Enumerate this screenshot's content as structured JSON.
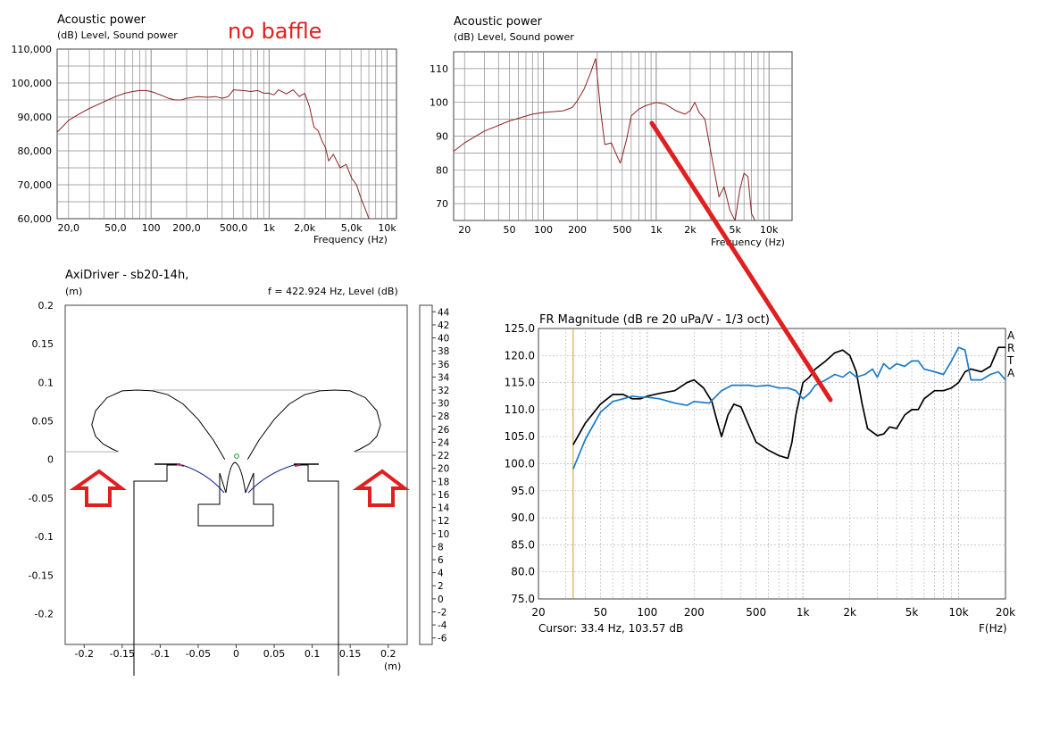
{
  "note": "no baffle",
  "colors": {
    "background": "#ffffff",
    "gridline": "#8a8a8a",
    "power_curve": "#8b2222",
    "annotation_red": "#e02020",
    "arta_black": "#000000",
    "arta_blue": "#1a7ac8",
    "cursor_line": "#c8a020"
  },
  "chart_data": [
    {
      "id": "power1",
      "type": "line",
      "title": "Acoustic power",
      "subtitle": "(dB)  Level, Sound power",
      "xlabel": "Frequency  (Hz)",
      "ylabel": "",
      "xscale": "log",
      "xlim": [
        16,
        12000
      ],
      "ylim": [
        60,
        110
      ],
      "grid": true,
      "x_ticks": [
        20,
        50,
        100,
        200,
        500,
        1000,
        2000,
        5000,
        10000
      ],
      "x_tick_labels": [
        "20,0",
        "50,0",
        "100",
        "200,0",
        "500,0",
        "1k",
        "2,0k",
        "5,0k",
        "10k"
      ],
      "y_ticks": [
        60,
        70,
        80,
        90,
        100,
        110
      ],
      "y_tick_labels": [
        "60,000",
        "70,000",
        "80,000",
        "90,000",
        "100,000",
        "110,000"
      ],
      "series": [
        {
          "x": [
            16,
            20,
            25,
            30,
            40,
            50,
            60,
            70,
            80,
            90,
            100,
            120,
            140,
            160,
            180,
            200,
            250,
            300,
            350,
            400,
            450,
            500,
            600,
            700,
            800,
            900,
            1000,
            1100,
            1200,
            1400,
            1600,
            1800,
            2000,
            2200,
            2400,
            2600,
            2800,
            3000,
            3200,
            3500,
            4000,
            4500,
            5000,
            5500,
            6000,
            6500,
            7000
          ],
          "y": [
            85.5,
            89,
            91,
            92.5,
            94.5,
            96,
            97,
            97.5,
            97.8,
            97.8,
            97.5,
            96.5,
            95.5,
            95,
            95,
            95.5,
            96,
            95.8,
            96,
            95.5,
            96,
            98,
            97.8,
            97.5,
            97.8,
            97,
            97,
            96.5,
            98,
            96.8,
            98,
            96,
            97,
            93,
            87,
            86,
            83,
            81,
            77,
            79,
            75,
            76,
            72,
            70,
            66,
            63,
            60
          ]
        }
      ]
    },
    {
      "id": "power2",
      "type": "line",
      "title": "Acoustic power",
      "subtitle": "(dB)  Level, Sound power",
      "xlabel": "Frequency  (Hz)",
      "ylabel": "",
      "xscale": "log",
      "xlim": [
        16,
        16000
      ],
      "ylim": [
        65,
        115
      ],
      "grid": true,
      "x_ticks": [
        20,
        50,
        100,
        200,
        500,
        1000,
        2000,
        5000,
        10000
      ],
      "x_tick_labels": [
        "20",
        "50",
        "100",
        "200",
        "500",
        "1k",
        "2k",
        "5k",
        "10k"
      ],
      "y_ticks": [
        70,
        80,
        90,
        100,
        110
      ],
      "y_tick_labels": [
        "70",
        "80",
        "90",
        "100",
        "110"
      ],
      "series": [
        {
          "x": [
            16,
            20,
            30,
            50,
            80,
            100,
            150,
            180,
            200,
            230,
            260,
            290,
            300,
            320,
            350,
            400,
            450,
            480,
            500,
            550,
            600,
            700,
            800,
            1000,
            1200,
            1500,
            1800,
            2000,
            2200,
            2400,
            2700,
            3000,
            3300,
            3600,
            4000,
            4500,
            5000,
            5500,
            6000,
            6500,
            7000,
            7500
          ],
          "y": [
            85.5,
            88,
            91.5,
            94.5,
            96.5,
            97,
            97.5,
            98.5,
            100.5,
            104,
            108.5,
            113,
            108,
            98,
            87.5,
            88,
            84,
            82,
            84,
            89.5,
            96,
            98,
            99,
            100,
            99.5,
            97.5,
            96.5,
            97.5,
            100,
            97,
            95,
            86.5,
            79,
            72,
            75,
            68,
            64,
            74,
            79,
            78,
            67,
            62
          ]
        }
      ]
    },
    {
      "id": "axidriver",
      "type": "contour",
      "title": "AxiDriver - sb20-14h,",
      "ylabel": "(m)",
      "info": "f = 422.924 Hz, Level  (dB)",
      "xlabel": "(m)",
      "xlim": [
        -0.225,
        0.225
      ],
      "ylim": [
        -0.24,
        0.2
      ],
      "x_ticks": [
        -0.2,
        -0.15,
        -0.1,
        -0.05,
        0,
        0.05,
        0.1,
        0.15,
        0.2
      ],
      "x_tick_labels": [
        "-0.2",
        "-0.15",
        "-0.1",
        "-0.05",
        "0",
        "0.05",
        "0.1",
        "0.15",
        "0.2"
      ],
      "y_ticks": [
        0.2,
        0.15,
        0.1,
        0.05,
        0,
        -0.05,
        -0.1,
        -0.15,
        -0.2
      ],
      "y_tick_labels": [
        "0.2",
        "0.15",
        "0.1",
        "0.05",
        "0",
        "-0.05",
        "-0.1",
        "-0.15",
        "-0.2"
      ],
      "colorbar_range": [
        -7,
        45
      ],
      "colorbar_labels": [
        "44",
        "42",
        "40",
        "38",
        "36",
        "34",
        "32",
        "30",
        "28",
        "26",
        "24",
        "22",
        "20",
        "18",
        "16",
        "14",
        "12",
        "10",
        "8",
        "6",
        "4",
        "2",
        "0",
        "-2",
        "-4",
        "-6"
      ],
      "lobe_right": {
        "x": [
          0.015,
          0.03,
          0.05,
          0.07,
          0.09,
          0.11,
          0.13,
          0.15,
          0.17,
          0.185,
          0.19,
          0.185,
          0.175,
          0.162,
          0.155
        ],
        "y": [
          0.0,
          0.025,
          0.052,
          0.072,
          0.084,
          0.089,
          0.09,
          0.089,
          0.08,
          0.063,
          0.045,
          0.03,
          0.02,
          0.013,
          0.01
        ]
      },
      "horizontal_ref_y": 0.09,
      "baseline_y": 0.01
    },
    {
      "id": "arta",
      "type": "line",
      "title": "FR Magnitude (dB re 20 uPa/V - 1/3 oct)",
      "xlabel": "F(Hz)",
      "ylabel": "",
      "xscale": "log",
      "xlim": [
        20,
        20000
      ],
      "ylim": [
        75,
        125
      ],
      "grid": true,
      "x_ticks": [
        20,
        50,
        100,
        200,
        500,
        1000,
        2000,
        5000,
        10000,
        20000
      ],
      "x_tick_labels": [
        "20",
        "50",
        "100",
        "200",
        "500",
        "1k",
        "2k",
        "5k",
        "10k",
        "20k"
      ],
      "y_ticks": [
        75,
        80,
        85,
        90,
        95,
        100,
        105,
        110,
        115,
        120,
        125
      ],
      "y_tick_labels": [
        "75.0",
        "80.0",
        "85.0",
        "90.0",
        "95.0",
        "100.0",
        "105.0",
        "110.0",
        "115.0",
        "120.0",
        "125.0"
      ],
      "cursor_x": 33.4,
      "cursor_text": "Cursor: 33.4 Hz, 103.57 dB",
      "side_letters": [
        "A",
        "R",
        "T",
        "A"
      ],
      "series": [
        {
          "x": [
            33.4,
            40,
            50,
            60,
            70,
            80,
            90,
            100,
            120,
            150,
            180,
            200,
            230,
            260,
            280,
            300,
            330,
            360,
            400,
            450,
            500,
            600,
            700,
            800,
            850,
            900,
            1000,
            1100,
            1200,
            1400,
            1600,
            1800,
            2000,
            2200,
            2400,
            2600,
            3000,
            3300,
            3600,
            4000,
            4500,
            5000,
            5500,
            6000,
            7000,
            8000,
            9000,
            10000,
            11000,
            12000,
            14000,
            16000,
            18000,
            20000
          ],
          "y": [
            103.5,
            107.5,
            111,
            112.8,
            112.8,
            112,
            112,
            112.5,
            113,
            113.5,
            115,
            115.5,
            114,
            111.5,
            108,
            105,
            109,
            111,
            110.5,
            107,
            104,
            102.5,
            101.5,
            101,
            104,
            109,
            115,
            116,
            117.5,
            119,
            120.5,
            121,
            120,
            117,
            111,
            106.5,
            105.2,
            105.5,
            106.8,
            106.5,
            109,
            110,
            110,
            112,
            113.5,
            113.5,
            114,
            115,
            117,
            117.5,
            117,
            118,
            121.5,
            121.5
          ]
        },
        {
          "x": [
            33.4,
            40,
            50,
            60,
            70,
            80,
            90,
            100,
            120,
            150,
            180,
            200,
            250,
            300,
            350,
            400,
            450,
            500,
            600,
            700,
            800,
            900,
            1000,
            1100,
            1200,
            1400,
            1600,
            1800,
            2000,
            2200,
            2500,
            2800,
            3000,
            3300,
            3600,
            4000,
            4500,
            5000,
            5500,
            6000,
            7000,
            8000,
            9000,
            10000,
            11000,
            12000,
            14000,
            16000,
            18000,
            20000
          ],
          "y": [
            99,
            104.5,
            109.5,
            111.5,
            112,
            112.5,
            112.3,
            112.3,
            112,
            111.2,
            110.8,
            111.5,
            111.2,
            113.5,
            114.5,
            114.5,
            114.5,
            114.3,
            114.5,
            114,
            114,
            113.5,
            112,
            113,
            114.5,
            115.5,
            116.5,
            116,
            117,
            116,
            116.5,
            117.5,
            116,
            118.5,
            117.5,
            118.5,
            118,
            119,
            119,
            117.5,
            117,
            116.5,
            119,
            121.5,
            121,
            115.5,
            115.5,
            116.5,
            117,
            115.5
          ]
        }
      ]
    }
  ]
}
